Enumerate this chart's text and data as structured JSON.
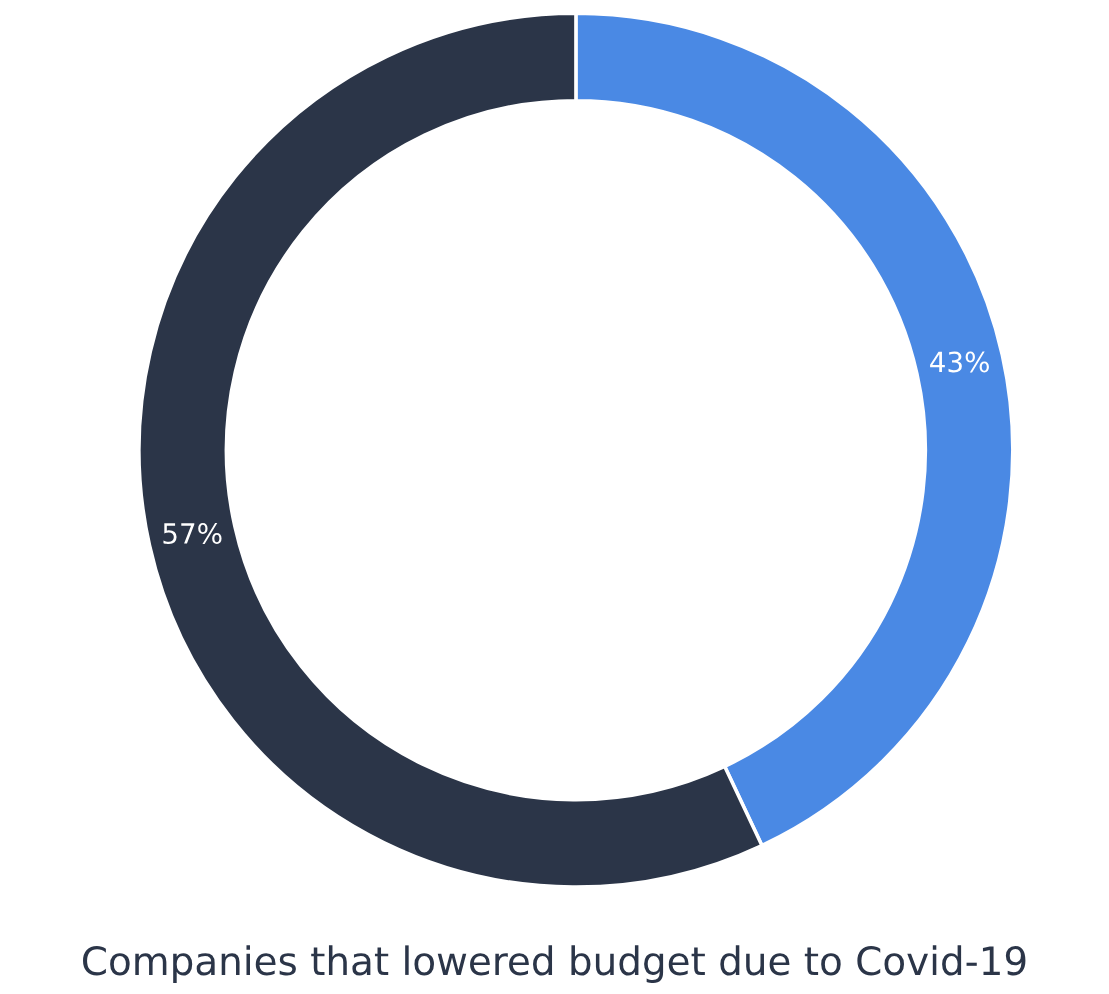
{
  "chart_data": {
    "type": "donut",
    "title": "Companies that lowered budget due to Covid-19",
    "categories": [
      null,
      null
    ],
    "values": [
      43,
      57
    ],
    "colors": [
      "#4a89e4",
      "#2b3548"
    ],
    "value_labels": [
      "43%",
      "57%"
    ]
  }
}
